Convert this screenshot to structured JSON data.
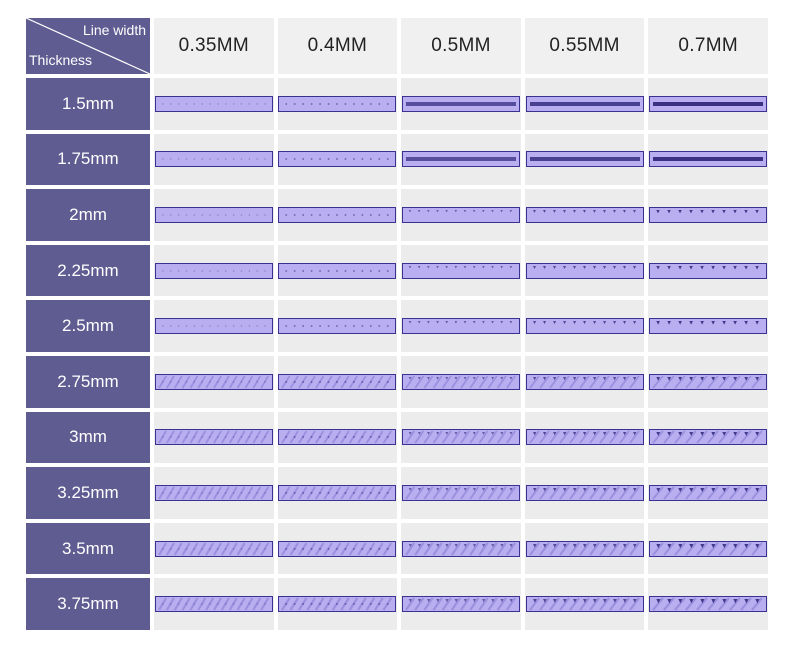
{
  "header": {
    "line_width_label": "Line width",
    "thickness_label": "Thickness"
  },
  "columns": [
    "0.35MM",
    "0.4MM",
    "0.5MM",
    "0.55MM",
    "0.7MM"
  ],
  "rows": [
    "1.5mm",
    "1.75mm",
    "2mm",
    "2.25mm",
    "2.5mm",
    "2.75mm",
    "3mm",
    "3.25mm",
    "3.5mm",
    "3.75mm"
  ],
  "colors": {
    "header_bg": "#5f5c92",
    "column_header_bg": "#f0f0f0",
    "cell_bg": "#ececec",
    "sample_fill": "#b8aef0",
    "sample_edge": "#3a3290",
    "sample_hole": "#2c2478"
  },
  "sample_icon": "purple-infill-strip-photo"
}
